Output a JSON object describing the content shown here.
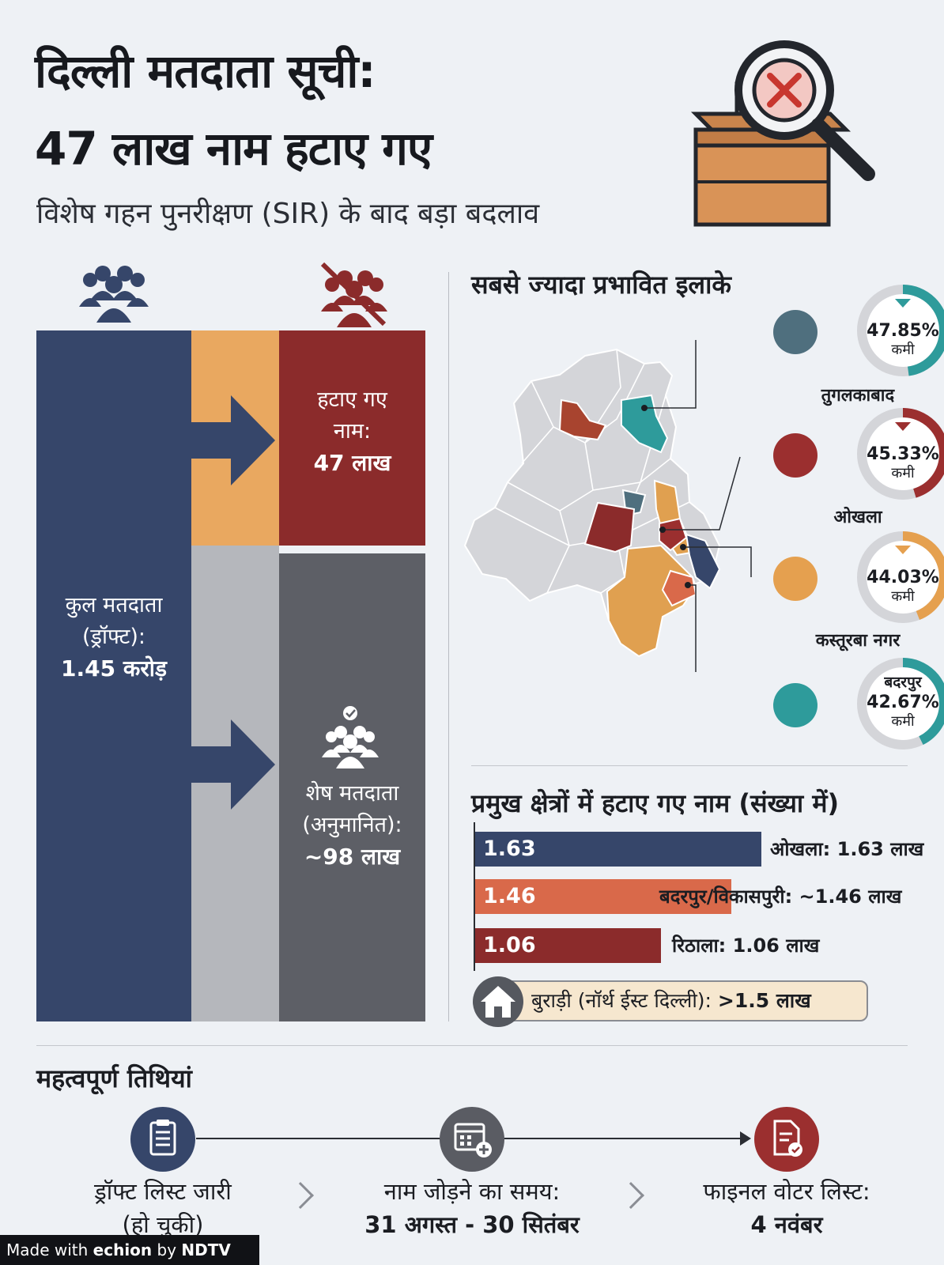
{
  "header": {
    "title_line1": "दिल्ली मतदाता सूची:",
    "title_line2": "47 लाख नाम हटाए गए",
    "subtitle": "विशेष गहन पुनरीक्षण (SIR) के बाद बड़ा बदलाव"
  },
  "flow": {
    "total": {
      "line1": "कुल मतदाता",
      "line2": "(ड्रॉफ्ट):",
      "value": "1.45 करोड़"
    },
    "removed": {
      "line1": "हटाए गए",
      "line2": "नाम:",
      "value": "47 लाख"
    },
    "remaining": {
      "line1": "शेष मतदाता",
      "line2": "(अनुमानित):",
      "value": "~98 लाख"
    }
  },
  "areas": {
    "heading": "सबसे ज्यादा प्रभावित इलाके",
    "items": [
      {
        "pct": "47.85%",
        "label": "कमी",
        "name": "तुगलकाबाद",
        "color": "#2e9b9b",
        "fraction": 0.4785,
        "icon": "fort-icon"
      },
      {
        "pct": "45.33%",
        "label": "कमी",
        "name": "ओखला",
        "color": "#9b2f2f",
        "fraction": 0.4533,
        "icon": "factory-icon"
      },
      {
        "pct": "44.03%",
        "label": "कमी",
        "name": "कस्तूरबा नगर",
        "color": "#e5a04f",
        "fraction": 0.4403,
        "icon": "building-icon"
      },
      {
        "pct": "42.67%",
        "label": "कमी",
        "name": "बदरपुर",
        "color": "#2e9b9b",
        "fraction": 0.4267,
        "icon": "bus-icon"
      }
    ]
  },
  "bars": {
    "heading": "प्रमुख क्षेत्रों में हटाए गए नाम (संख्या में)",
    "items": [
      {
        "value": "1.63",
        "label": "ओखला: 1.63 लाख",
        "color": "#36466a",
        "num": 1.63
      },
      {
        "value": "1.46",
        "label": "बदरपुर/विकासपुरी: ~1.46 लाख",
        "color": "#d9694a",
        "num": 1.46
      },
      {
        "value": "1.06",
        "label": "रिठाला: 1.06 लाख",
        "color": "#8b2b2b",
        "num": 1.06
      }
    ],
    "burari": {
      "text": "बुराड़ी (नॉर्थ ईस्ट दिल्ली): ",
      "value": ">1.5 लाख"
    }
  },
  "dates": {
    "heading": "महत्वपूर्ण तिथियां",
    "steps": [
      {
        "line1": "ड्रॉफ्ट लिस्ट जारी",
        "line2": "(हो चुकी)",
        "color": "#36466a"
      },
      {
        "line1": "नाम जोड़ने का समय:",
        "line2": "31 अगस्त - 30 सितंबर",
        "color": "#5a5c63"
      },
      {
        "line1": "फाइनल वोटर लिस्ट:",
        "line2": "4 नवंबर",
        "color": "#9b2f2f"
      }
    ]
  },
  "footer": {
    "made_with": "Made with ",
    "brand1": "echion",
    "by": " by ",
    "brand2": "NDTV"
  }
}
